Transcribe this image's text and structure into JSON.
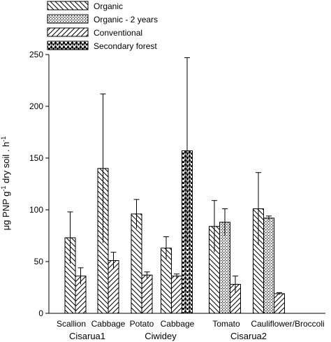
{
  "chart_data": {
    "type": "bar",
    "title": "",
    "xlabel": "",
    "ylabel": "μg PNP g⁻¹ dry soil . h⁻¹",
    "ylabel_parts": {
      "main": "μg PNP g",
      "sup1": "-1",
      "mid": " dry soil . h",
      "sup2": "-1"
    },
    "ylim": [
      0,
      250
    ],
    "yticks": [
      0,
      50,
      100,
      150,
      200,
      250
    ],
    "grid": false,
    "legend_position": "top-left",
    "series": [
      {
        "name": "Organic",
        "pattern": "diag-down"
      },
      {
        "name": "Organic - 2 years",
        "pattern": "dots"
      },
      {
        "name": "Conventional",
        "pattern": "diag-up"
      },
      {
        "name": "Secondary forest",
        "pattern": "checker"
      }
    ],
    "categories": [
      "Scallion",
      "Cabbage",
      "Potato",
      "Cabbage",
      "Tomato",
      "Cauliflower/Broccoli"
    ],
    "groups": [
      "Cisarua1",
      "Ciwidey",
      "Cisarua2"
    ],
    "bars": [
      {
        "category": "Scallion",
        "group": "Cisarua1",
        "series": "Organic",
        "value": 73,
        "error": 25
      },
      {
        "category": "Scallion",
        "group": "Cisarua1",
        "series": "Conventional",
        "value": 36,
        "error": 8
      },
      {
        "category": "Cabbage",
        "group": "Cisarua1",
        "series": "Organic",
        "value": 140,
        "error": 72
      },
      {
        "category": "Cabbage",
        "group": "Cisarua1",
        "series": "Conventional",
        "value": 51,
        "error": 8
      },
      {
        "category": "Potato",
        "group": "Ciwidey",
        "series": "Organic",
        "value": 96,
        "error": 14
      },
      {
        "category": "Potato",
        "group": "Ciwidey",
        "series": "Conventional",
        "value": 37,
        "error": 3
      },
      {
        "category": "Cabbage",
        "group": "Ciwidey",
        "series": "Organic",
        "value": 63,
        "error": 11
      },
      {
        "category": "Cabbage",
        "group": "Ciwidey",
        "series": "Conventional",
        "value": 36,
        "error": 2
      },
      {
        "category": "Cabbage",
        "group": "Ciwidey",
        "series": "Secondary forest",
        "value": 157,
        "error": 90
      },
      {
        "category": "Tomato",
        "group": "Cisarua2",
        "series": "Organic",
        "value": 84,
        "error": 25
      },
      {
        "category": "Tomato",
        "group": "Cisarua2",
        "series": "Organic - 2 years",
        "value": 88,
        "error": 13
      },
      {
        "category": "Tomato",
        "group": "Cisarua2",
        "series": "Conventional",
        "value": 28,
        "error": 8
      },
      {
        "category": "Cauliflower/Broccoli",
        "group": "Cisarua2",
        "series": "Organic",
        "value": 101,
        "error": 35
      },
      {
        "category": "Cauliflower/Broccoli",
        "group": "Cisarua2",
        "series": "Organic - 2 years",
        "value": 92,
        "error": 2
      },
      {
        "category": "Cauliflower/Broccoli",
        "group": "Cisarua2",
        "series": "Conventional",
        "value": 19,
        "error": 1
      }
    ]
  }
}
